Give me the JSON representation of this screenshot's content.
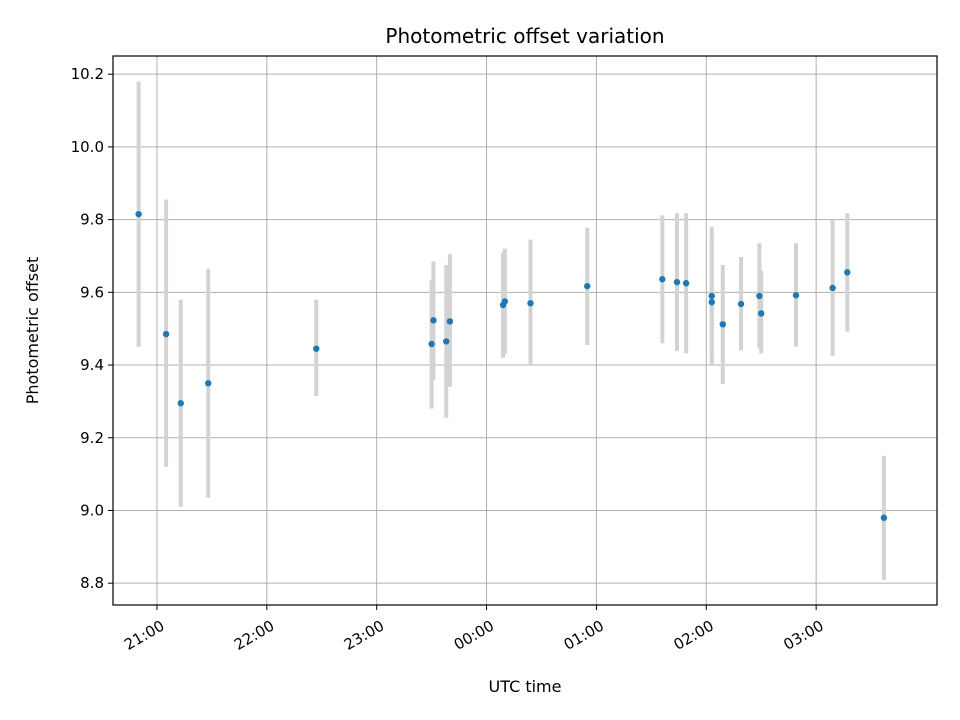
{
  "chart_data": {
    "type": "scatter",
    "title": "Photometric offset variation",
    "xlabel": "UTC time",
    "ylabel": "Photometric offset",
    "x_axis_type": "time",
    "xlim": [
      "2021-01-01T20:36",
      "2021-01-02T04:06"
    ],
    "ylim": [
      8.74,
      10.25
    ],
    "grid": true,
    "legend": "none",
    "point_color": "#1f77b4",
    "errorbar_color": "#d3d3d3",
    "x_ticks": [
      {
        "t": "2021-01-01T21:00",
        "label": "21:00"
      },
      {
        "t": "2021-01-01T22:00",
        "label": "22:00"
      },
      {
        "t": "2021-01-01T23:00",
        "label": "23:00"
      },
      {
        "t": "2021-01-02T00:00",
        "label": "00:00"
      },
      {
        "t": "2021-01-02T01:00",
        "label": "01:00"
      },
      {
        "t": "2021-01-02T02:00",
        "label": "02:00"
      },
      {
        "t": "2021-01-02T03:00",
        "label": "03:00"
      }
    ],
    "y_ticks": [
      {
        "v": 8.8,
        "label": "8.8"
      },
      {
        "v": 9.0,
        "label": "9.0"
      },
      {
        "v": 9.2,
        "label": "9.2"
      },
      {
        "v": 9.4,
        "label": "9.4"
      },
      {
        "v": 9.6,
        "label": "9.6"
      },
      {
        "v": 9.8,
        "label": "9.8"
      },
      {
        "v": 10.0,
        "label": "10.0"
      },
      {
        "v": 10.2,
        "label": "10.2"
      }
    ],
    "points": [
      {
        "t": "2021-01-01T20:50",
        "y": 9.815,
        "err_low": 9.45,
        "err_high": 10.18
      },
      {
        "t": "2021-01-01T21:05",
        "y": 9.485,
        "err_low": 9.12,
        "err_high": 9.855
      },
      {
        "t": "2021-01-01T21:13",
        "y": 9.295,
        "err_low": 9.01,
        "err_high": 9.58
      },
      {
        "t": "2021-01-01T21:28",
        "y": 9.35,
        "err_low": 9.035,
        "err_high": 9.665
      },
      {
        "t": "2021-01-01T22:27",
        "y": 9.445,
        "err_low": 9.315,
        "err_high": 9.58
      },
      {
        "t": "2021-01-01T23:30",
        "y": 9.458,
        "err_low": 9.28,
        "err_high": 9.635
      },
      {
        "t": "2021-01-01T23:31",
        "y": 9.523,
        "err_low": 9.36,
        "err_high": 9.685
      },
      {
        "t": "2021-01-01T23:38",
        "y": 9.465,
        "err_low": 9.255,
        "err_high": 9.675
      },
      {
        "t": "2021-01-01T23:40",
        "y": 9.52,
        "err_low": 9.34,
        "err_high": 9.705
      },
      {
        "t": "2021-01-02T00:09",
        "y": 9.565,
        "err_low": 9.42,
        "err_high": 9.71
      },
      {
        "t": "2021-01-02T00:10",
        "y": 9.575,
        "err_low": 9.43,
        "err_high": 9.72
      },
      {
        "t": "2021-01-02T00:24",
        "y": 9.57,
        "err_low": 9.4,
        "err_high": 9.745
      },
      {
        "t": "2021-01-02T00:55",
        "y": 9.617,
        "err_low": 9.455,
        "err_high": 9.778
      },
      {
        "t": "2021-01-02T01:36",
        "y": 9.636,
        "err_low": 9.46,
        "err_high": 9.812
      },
      {
        "t": "2021-01-02T01:44",
        "y": 9.628,
        "err_low": 9.438,
        "err_high": 9.818
      },
      {
        "t": "2021-01-02T01:49",
        "y": 9.625,
        "err_low": 9.432,
        "err_high": 9.818
      },
      {
        "t": "2021-01-02T02:03",
        "y": 9.59,
        "err_low": 9.43,
        "err_high": 9.75
      },
      {
        "t": "2021-01-02T02:03",
        "y": 9.573,
        "err_low": 9.4,
        "err_high": 9.78
      },
      {
        "t": "2021-01-02T02:09",
        "y": 9.512,
        "err_low": 9.348,
        "err_high": 9.675
      },
      {
        "t": "2021-01-02T02:19",
        "y": 9.568,
        "err_low": 9.44,
        "err_high": 9.697
      },
      {
        "t": "2021-01-02T02:29",
        "y": 9.59,
        "err_low": 9.445,
        "err_high": 9.735
      },
      {
        "t": "2021-01-02T02:30",
        "y": 9.542,
        "err_low": 9.432,
        "err_high": 9.66
      },
      {
        "t": "2021-01-02T02:49",
        "y": 9.592,
        "err_low": 9.45,
        "err_high": 9.735
      },
      {
        "t": "2021-01-02T03:09",
        "y": 9.612,
        "err_low": 9.425,
        "err_high": 9.8
      },
      {
        "t": "2021-01-02T03:17",
        "y": 9.655,
        "err_low": 9.492,
        "err_high": 9.818
      },
      {
        "t": "2021-01-02T03:37",
        "y": 8.98,
        "err_low": 8.808,
        "err_high": 9.15
      }
    ]
  }
}
